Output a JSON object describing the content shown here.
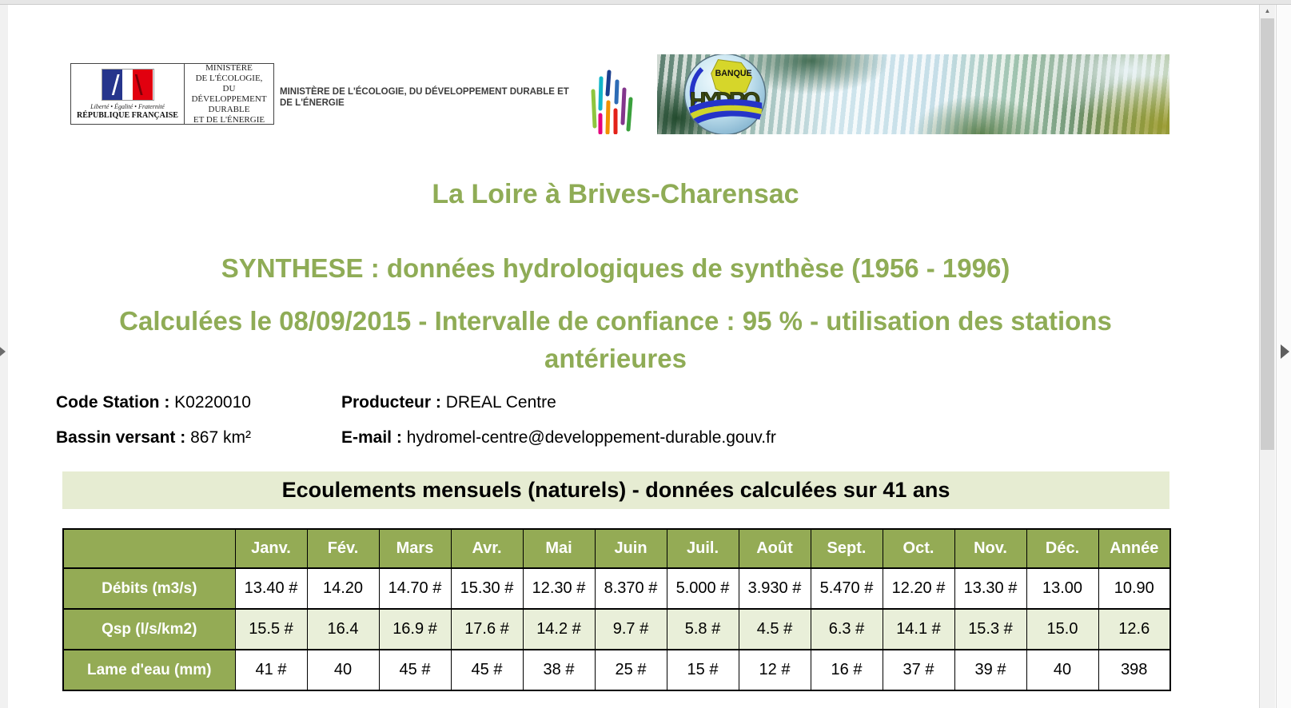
{
  "titles": {
    "station_title": "La Loire à Brives-Charensac",
    "synthese_line": "SYNTHESE : données hydrologiques de synthèse (1956 - 1996)",
    "calc_line": "Calculées le 08/09/2015 -  Intervalle de confiance : 95 % -  utilisation des stations antérieures"
  },
  "header": {
    "marianne_block": {
      "motto": "Liberté • Égalité • Fraternité",
      "republic": "RÉPUBLIQUE FRANÇAISE",
      "ministry_lines": "MINISTÈRE\nDE L'ÉCOLOGIE,\nDU DÉVELOPPEMENT\nDURABLE\nET DE L'ÉNERGIE"
    },
    "banner_text": "MINISTÈRE DE L'ÉCOLOGIE, DU DÉVELOPPEMENT DURABLE ET DE L'ÉNERGIE",
    "hydro_logo": {
      "banque": "BANQUE",
      "hydro": "HYDRO"
    }
  },
  "station": {
    "code_label": "Code Station :",
    "code_value": "K0220010",
    "producer_label": "Producteur :",
    "producer_value": "DREAL Centre",
    "basin_label": "Bassin versant :",
    "basin_value": "867 km²",
    "email_label": "E-mail :",
    "email_value": "hydromel-centre@developpement-durable.gouv.fr"
  },
  "section": {
    "heading": "Ecoulements mensuels (naturels) - données calculées sur 41 ans"
  },
  "table": {
    "columns": [
      "Janv.",
      "Fév.",
      "Mars",
      "Avr.",
      "Mai",
      "Juin",
      "Juil.",
      "Août",
      "Sept.",
      "Oct.",
      "Nov.",
      "Déc.",
      "Année"
    ],
    "rows": [
      {
        "label": "Débits (m3/s)",
        "zebra": false,
        "values": [
          "13.40 #",
          "14.20",
          "14.70 #",
          "15.30 #",
          "12.30 #",
          "8.370 #",
          "5.000 #",
          "3.930 #",
          "5.470 #",
          "12.20 #",
          "13.30 #",
          "13.00",
          "10.90"
        ]
      },
      {
        "label": "Qsp (l/s/km2)",
        "zebra": true,
        "values": [
          "15.5 #",
          "16.4",
          "16.9 #",
          "17.6 #",
          "14.2 #",
          "9.7 #",
          "5.8 #",
          "4.5 #",
          "6.3 #",
          "14.1 #",
          "15.3 #",
          "15.0",
          "12.6"
        ]
      },
      {
        "label": "Lame d'eau (mm)",
        "zebra": false,
        "values": [
          "41 #",
          "40",
          "45 #",
          "45 #",
          "38 #",
          "25 #",
          "15 #",
          "12 #",
          "16 #",
          "37 #",
          "39 #",
          "40",
          "398"
        ]
      }
    ]
  },
  "colors": {
    "accent_green": "#94ab55",
    "title_green": "#8fac56",
    "band_green": "#e6ecd2",
    "zebra_green": "#e9efd9"
  }
}
